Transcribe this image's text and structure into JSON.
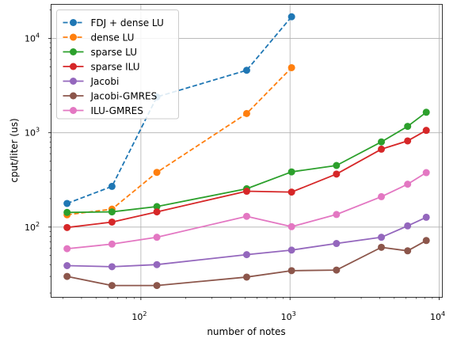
{
  "chart_data": {
    "type": "line",
    "title": "",
    "xlabel": "number of notes",
    "ylabel": "cput/liter (us)",
    "xscale": "log",
    "yscale": "log",
    "xlim": [
      25,
      10500
    ],
    "ylim": [
      18,
      23000
    ],
    "grid": true,
    "legend_position": "top-left",
    "x_ticks": [
      {
        "value": 100,
        "base": "10",
        "exp": "2"
      },
      {
        "value": 1000,
        "base": "10",
        "exp": "3"
      },
      {
        "value": 10000,
        "base": "10",
        "exp": "4"
      }
    ],
    "y_ticks": [
      {
        "value": 100,
        "base": "10",
        "exp": "2"
      },
      {
        "value": 1000,
        "base": "10",
        "exp": "3"
      },
      {
        "value": 10000,
        "base": "10",
        "exp": "4"
      }
    ],
    "series": [
      {
        "name": "FDJ + dense LU",
        "color": "#1f77b4",
        "dashed": true,
        "x": [
          32,
          64,
          128,
          512,
          1024
        ],
        "y": [
          178,
          270,
          2400,
          4600,
          17000
        ]
      },
      {
        "name": "dense LU",
        "color": "#ff7f0e",
        "dashed": true,
        "x": [
          32,
          64,
          128,
          512,
          1024
        ],
        "y": [
          135,
          155,
          380,
          1600,
          4900
        ]
      },
      {
        "name": "sparse LU",
        "color": "#2ca02c",
        "dashed": false,
        "x": [
          32,
          64,
          128,
          512,
          1024,
          2048,
          4096,
          6144,
          8192
        ],
        "y": [
          143,
          145,
          165,
          255,
          385,
          450,
          800,
          1170,
          1650
        ]
      },
      {
        "name": "sparse ILU",
        "color": "#d62728",
        "dashed": false,
        "x": [
          32,
          64,
          128,
          512,
          1024,
          2048,
          4096,
          6144,
          8192
        ],
        "y": [
          99,
          113,
          145,
          240,
          235,
          365,
          670,
          820,
          1060
        ]
      },
      {
        "name": "Jacobi",
        "color": "#9467bd",
        "dashed": false,
        "x": [
          32,
          64,
          128,
          512,
          1024,
          2048,
          4096,
          6144,
          8192
        ],
        "y": [
          39,
          38,
          40,
          51,
          57,
          67,
          78,
          103,
          127
        ]
      },
      {
        "name": "Jacobi-GMRES",
        "color": "#8c564b",
        "dashed": false,
        "x": [
          32,
          64,
          128,
          512,
          1024,
          2048,
          4096,
          6144,
          8192
        ],
        "y": [
          30,
          24,
          24,
          29.5,
          34.5,
          35,
          61,
          56,
          72
        ]
      },
      {
        "name": "ILU-GMRES",
        "color": "#e377c2",
        "dashed": false,
        "x": [
          32,
          64,
          128,
          512,
          1024,
          2048,
          4096,
          6144,
          8192
        ],
        "y": [
          59,
          66,
          78,
          130,
          101,
          136,
          210,
          285,
          378
        ]
      }
    ]
  }
}
